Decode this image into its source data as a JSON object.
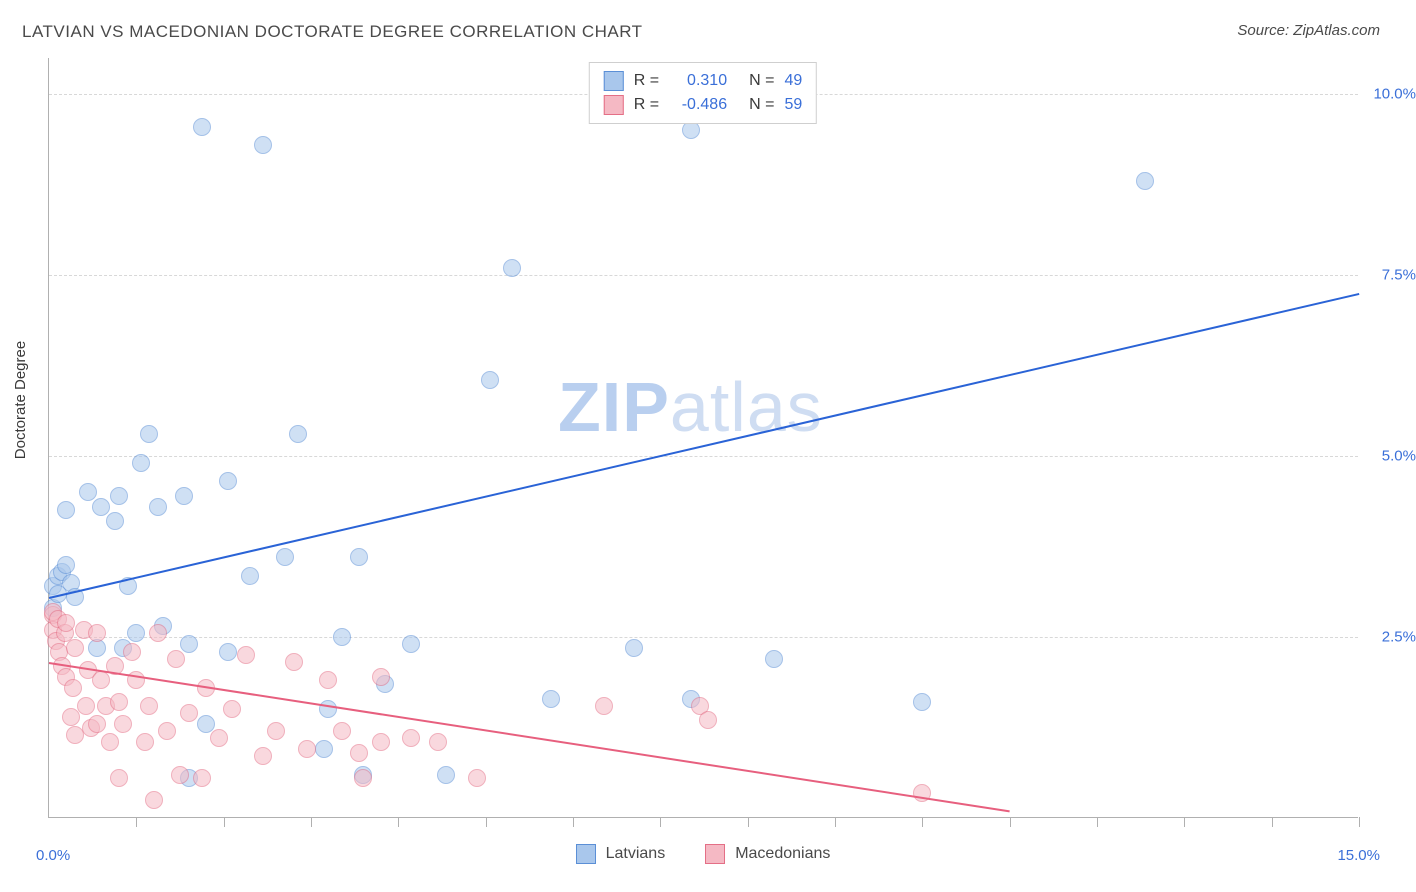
{
  "title": "LATVIAN VS MACEDONIAN DOCTORATE DEGREE CORRELATION CHART",
  "source_prefix": "Source: ",
  "source_name": "ZipAtlas.com",
  "watermark_a": "ZIP",
  "watermark_b": "atlas",
  "chart": {
    "type": "scatter",
    "ylabel": "Doctorate Degree",
    "xlim": [
      0.0,
      15.0
    ],
    "ylim": [
      0.0,
      10.5
    ],
    "yticks": [
      {
        "v": 2.5,
        "label": "2.5%"
      },
      {
        "v": 5.0,
        "label": "5.0%"
      },
      {
        "v": 7.5,
        "label": "7.5%"
      },
      {
        "v": 10.0,
        "label": "10.0%"
      }
    ],
    "xticks_minor": [
      1.0,
      2.0,
      3.0,
      4.0,
      5.0,
      6.0,
      7.0,
      8.0,
      9.0,
      10.0,
      11.0,
      12.0,
      13.0,
      14.0,
      15.0
    ],
    "x_min_label": "0.0%",
    "x_max_label": "15.0%",
    "grid_color": "#d8d8d8",
    "axis_color": "#b0b0b0",
    "marker_radius": 9,
    "marker_opacity": 0.55,
    "marker_stroke_opacity": 0.9,
    "series": [
      {
        "name": "Latvians",
        "fill": "#a9c7ec",
        "stroke": "#5b8fd6",
        "reg_color": "#2a63d6",
        "R_label": "R =",
        "R_value": "0.310",
        "N_label": "N =",
        "N_value": "49",
        "regression": {
          "x1": 0.0,
          "y1": 3.05,
          "x2": 15.0,
          "y2": 7.25
        },
        "points": [
          [
            0.05,
            2.9
          ],
          [
            0.05,
            3.2
          ],
          [
            0.1,
            3.1
          ],
          [
            0.1,
            3.35
          ],
          [
            0.15,
            3.4
          ],
          [
            0.2,
            4.25
          ],
          [
            0.2,
            3.5
          ],
          [
            0.25,
            3.25
          ],
          [
            0.3,
            3.05
          ],
          [
            0.45,
            4.5
          ],
          [
            0.55,
            2.35
          ],
          [
            0.6,
            4.3
          ],
          [
            0.75,
            4.1
          ],
          [
            0.8,
            4.45
          ],
          [
            0.85,
            2.35
          ],
          [
            0.9,
            3.2
          ],
          [
            1.0,
            2.55
          ],
          [
            1.05,
            4.9
          ],
          [
            1.15,
            5.3
          ],
          [
            1.25,
            4.3
          ],
          [
            1.3,
            2.65
          ],
          [
            1.55,
            4.45
          ],
          [
            1.6,
            2.4
          ],
          [
            1.6,
            0.55
          ],
          [
            1.75,
            9.55
          ],
          [
            1.8,
            1.3
          ],
          [
            2.05,
            4.65
          ],
          [
            2.05,
            2.3
          ],
          [
            2.3,
            3.35
          ],
          [
            2.45,
            9.3
          ],
          [
            2.7,
            3.6
          ],
          [
            2.85,
            5.3
          ],
          [
            3.15,
            0.95
          ],
          [
            3.2,
            1.5
          ],
          [
            3.35,
            2.5
          ],
          [
            3.55,
            3.6
          ],
          [
            3.6,
            0.6
          ],
          [
            3.85,
            1.85
          ],
          [
            4.15,
            2.4
          ],
          [
            4.55,
            0.6
          ],
          [
            5.05,
            6.05
          ],
          [
            5.3,
            7.6
          ],
          [
            5.75,
            1.65
          ],
          [
            6.7,
            2.35
          ],
          [
            7.35,
            1.65
          ],
          [
            7.35,
            9.5
          ],
          [
            8.3,
            2.2
          ],
          [
            10.0,
            1.6
          ],
          [
            12.55,
            8.8
          ]
        ]
      },
      {
        "name": "Macedonians",
        "fill": "#f5b9c4",
        "stroke": "#e46f86",
        "reg_color": "#e75f7e",
        "R_label": "R =",
        "R_value": "-0.486",
        "N_label": "N =",
        "N_value": "59",
        "regression": {
          "x1": 0.0,
          "y1": 2.15,
          "x2": 11.0,
          "y2": 0.1
        },
        "points": [
          [
            0.05,
            2.8
          ],
          [
            0.05,
            2.6
          ],
          [
            0.05,
            2.85
          ],
          [
            0.08,
            2.45
          ],
          [
            0.1,
            2.75
          ],
          [
            0.12,
            2.3
          ],
          [
            0.15,
            2.1
          ],
          [
            0.18,
            2.55
          ],
          [
            0.2,
            1.95
          ],
          [
            0.2,
            2.7
          ],
          [
            0.25,
            1.4
          ],
          [
            0.28,
            1.8
          ],
          [
            0.3,
            2.35
          ],
          [
            0.3,
            1.15
          ],
          [
            0.4,
            2.6
          ],
          [
            0.42,
            1.55
          ],
          [
            0.45,
            2.05
          ],
          [
            0.48,
            1.25
          ],
          [
            0.55,
            2.55
          ],
          [
            0.55,
            1.3
          ],
          [
            0.6,
            1.9
          ],
          [
            0.65,
            1.55
          ],
          [
            0.7,
            1.05
          ],
          [
            0.75,
            2.1
          ],
          [
            0.8,
            0.55
          ],
          [
            0.8,
            1.6
          ],
          [
            0.85,
            1.3
          ],
          [
            0.95,
            2.3
          ],
          [
            1.0,
            1.9
          ],
          [
            1.1,
            1.05
          ],
          [
            1.15,
            1.55
          ],
          [
            1.2,
            0.25
          ],
          [
            1.25,
            2.55
          ],
          [
            1.35,
            1.2
          ],
          [
            1.45,
            2.2
          ],
          [
            1.5,
            0.6
          ],
          [
            1.6,
            1.45
          ],
          [
            1.75,
            0.55
          ],
          [
            1.8,
            1.8
          ],
          [
            1.95,
            1.1
          ],
          [
            2.1,
            1.5
          ],
          [
            2.25,
            2.25
          ],
          [
            2.45,
            0.85
          ],
          [
            2.6,
            1.2
          ],
          [
            2.8,
            2.15
          ],
          [
            2.95,
            0.95
          ],
          [
            3.2,
            1.9
          ],
          [
            3.35,
            1.2
          ],
          [
            3.55,
            0.9
          ],
          [
            3.6,
            0.55
          ],
          [
            3.8,
            1.05
          ],
          [
            3.8,
            1.95
          ],
          [
            4.15,
            1.1
          ],
          [
            4.45,
            1.05
          ],
          [
            4.9,
            0.55
          ],
          [
            6.35,
            1.55
          ],
          [
            7.45,
            1.55
          ],
          [
            7.55,
            1.35
          ],
          [
            10.0,
            0.35
          ]
        ]
      }
    ],
    "legend_bottom": [
      {
        "swatch_fill": "#a9c7ec",
        "swatch_stroke": "#5b8fd6",
        "label": "Latvians"
      },
      {
        "swatch_fill": "#f5b9c4",
        "swatch_stroke": "#e46f86",
        "label": "Macedonians"
      }
    ]
  }
}
